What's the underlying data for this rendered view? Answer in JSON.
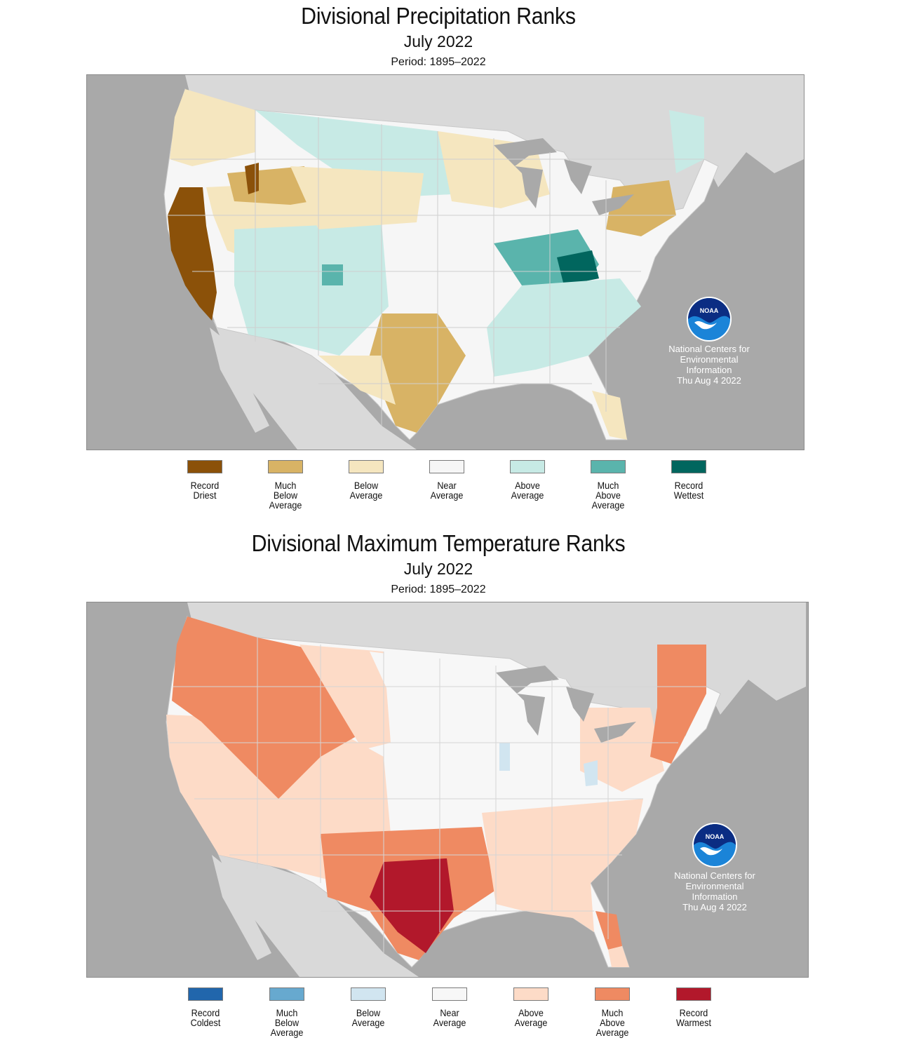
{
  "precip": {
    "title": "Divisional Precipitation Ranks",
    "subtitle": "July 2022",
    "period": "Period: 1895–2022",
    "credit": "National Centers for\nEnvironmental\nInformation\nThu Aug  4 2022",
    "logo_text": "NOAA",
    "legend": [
      {
        "label": "Record\nDriest",
        "color": "#8b5109"
      },
      {
        "label": "Much\nBelow\nAverage",
        "color": "#d8b365"
      },
      {
        "label": "Below\nAverage",
        "color": "#f5e6bf"
      },
      {
        "label": "Near\nAverage",
        "color": "#f6f6f6"
      },
      {
        "label": "Above\nAverage",
        "color": "#c7eae5"
      },
      {
        "label": "Much\nAbove\nAverage",
        "color": "#5ab4ac"
      },
      {
        "label": "Record\nWettest",
        "color": "#01665e"
      }
    ]
  },
  "temp": {
    "title": "Divisional Maximum Temperature Ranks",
    "subtitle": "July 2022",
    "period": "Period: 1895–2022",
    "credit": "National Centers for\nEnvironmental\nInformation\nThu Aug  4 2022",
    "logo_text": "NOAA",
    "legend": [
      {
        "label": "Record\nColdest",
        "color": "#2166ac"
      },
      {
        "label": "Much\nBelow\nAverage",
        "color": "#67a9cf"
      },
      {
        "label": "Below\nAverage",
        "color": "#d1e5f0"
      },
      {
        "label": "Near\nAverage",
        "color": "#f7f7f7"
      },
      {
        "label": "Above\nAverage",
        "color": "#fddbc7"
      },
      {
        "label": "Much\nAbove\nAverage",
        "color": "#ef8a62"
      },
      {
        "label": "Record\nWarmest",
        "color": "#b2182b"
      }
    ]
  },
  "map_colors": {
    "ocean": "#a9a9a9",
    "land_outside": "#d9d9d9",
    "great_lakes": "#a9a9a9",
    "division_lines": "#c8c8c8",
    "logo_blue": "#1b84d8",
    "logo_dark": "#0b2d83"
  }
}
